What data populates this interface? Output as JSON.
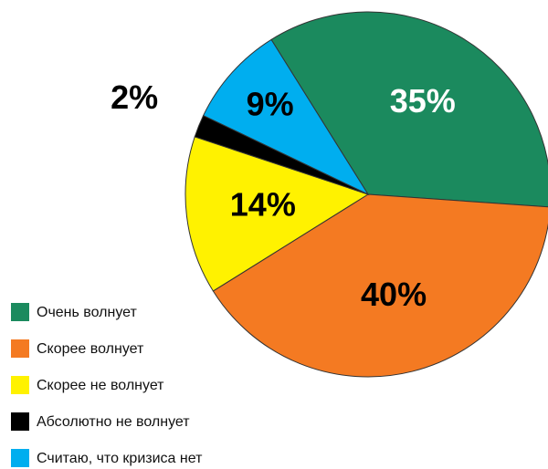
{
  "chart_data": {
    "type": "pie",
    "categories": [
      "Очень волнует",
      "Скорее волнует",
      "Скорее не волнует",
      "Абсолютно не волнует",
      "Считаю, что кризиса нет"
    ],
    "values": [
      35,
      40,
      14,
      2,
      9
    ],
    "value_labels": [
      "35%",
      "40%",
      "14%",
      "2%",
      "9%"
    ],
    "colors": [
      "#1b8a5e",
      "#f47a22",
      "#fff200",
      "#000000",
      "#00aeef"
    ],
    "label_colors": [
      "#ffffff",
      "#000000",
      "#000000",
      "#000000",
      "#000000"
    ]
  }
}
